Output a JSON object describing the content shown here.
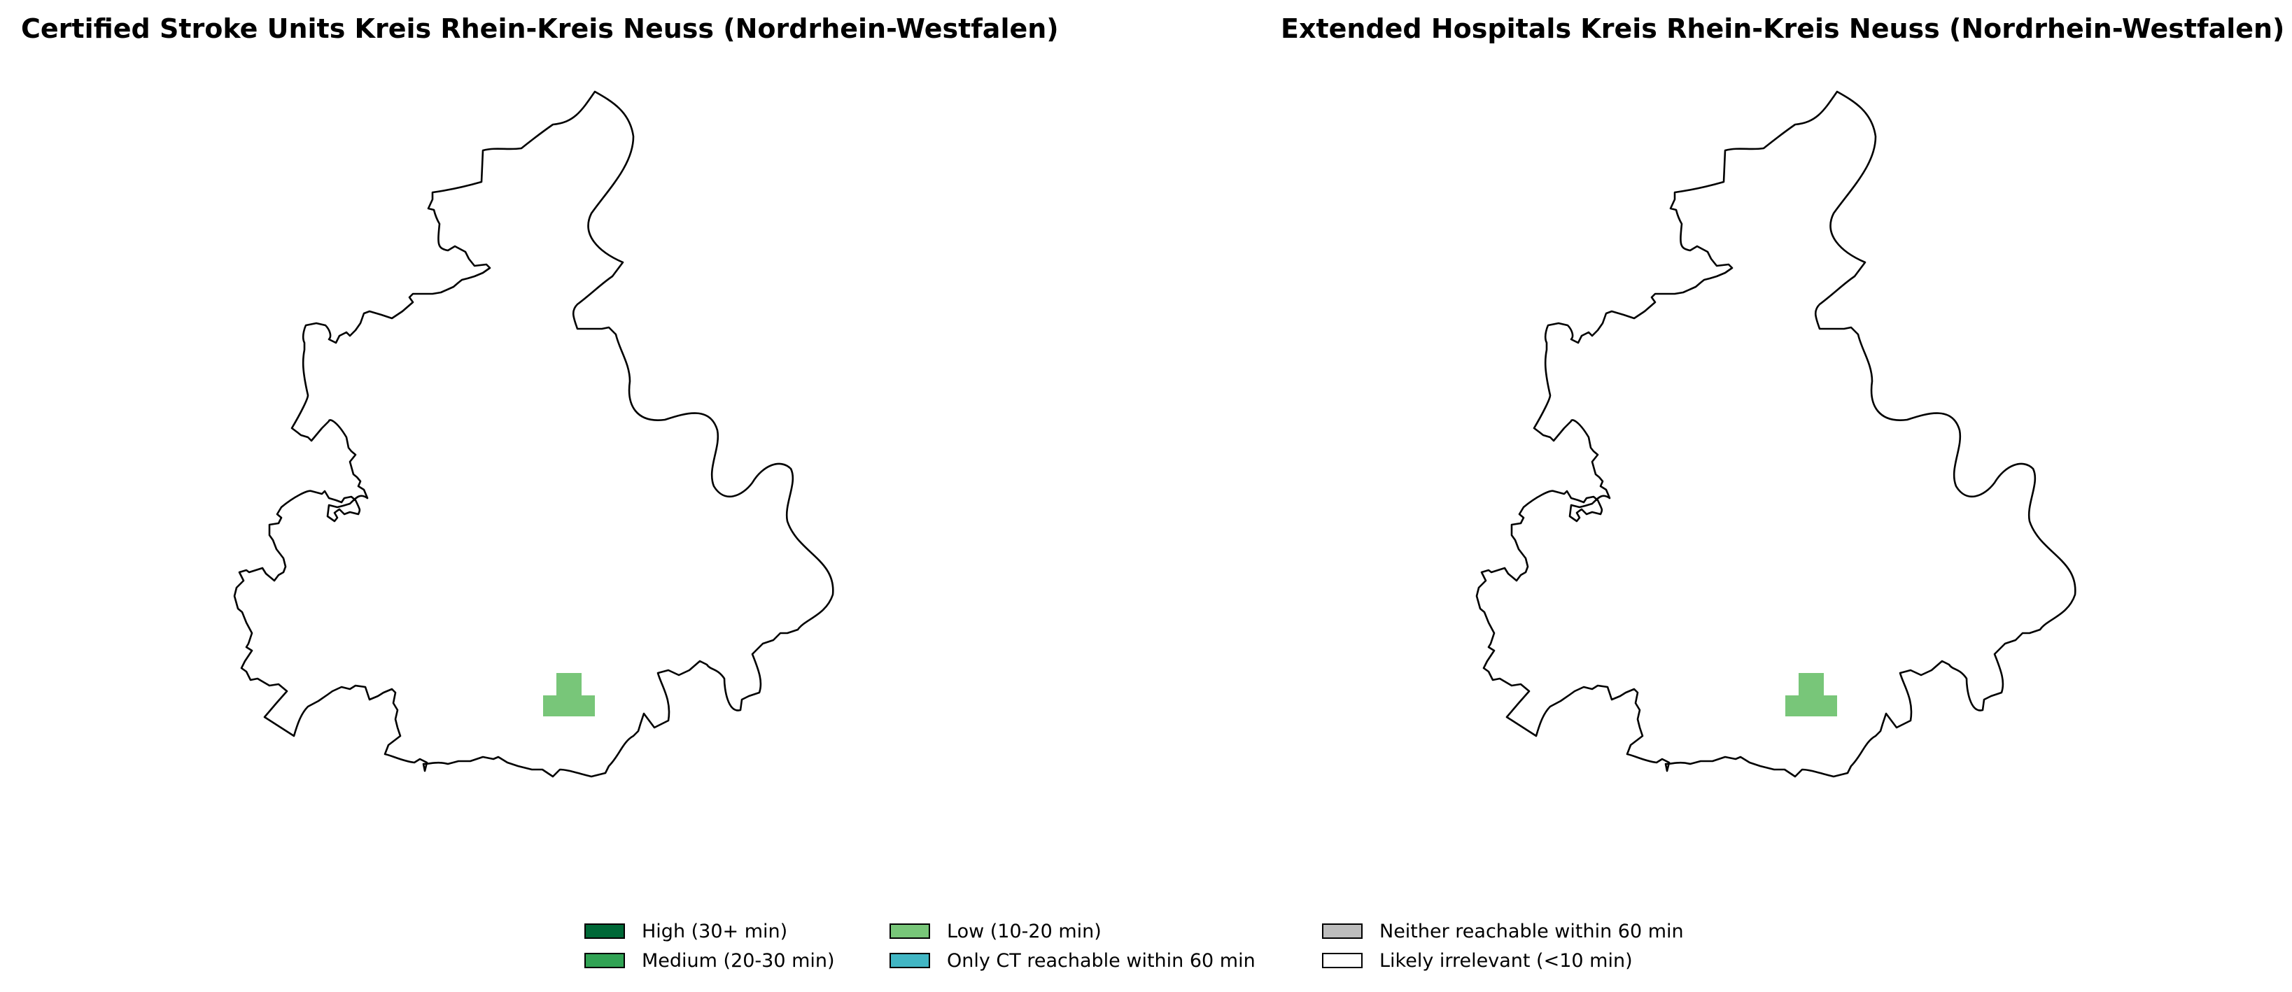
{
  "panels": [
    {
      "title": "Certified Stroke Units Kreis Rhein-Kreis Neuss (Nordrhein-Westfalen)",
      "highlighted_category": "Low (10-20 min)"
    },
    {
      "title": "Extended Hospitals Kreis Rhein-Kreis Neuss (Nordrhein-Westfalen)",
      "highlighted_category": "Low (10-20 min)"
    }
  ],
  "legend": {
    "items": [
      {
        "label": "High (30+ min)",
        "color": "#006837"
      },
      {
        "label": "Medium (20-30 min)",
        "color": "#31a354"
      },
      {
        "label": "Low (10-20 min)",
        "color": "#78c679"
      },
      {
        "label": "Only CT reachable within 60 min",
        "color": "#41b6c4"
      },
      {
        "label": "Neither reachable within 60 min",
        "color": "#bdbdbd"
      },
      {
        "label": "Likely irrelevant (<10 min)",
        "color": "#ffffff"
      }
    ]
  },
  "colors": {
    "outline": "#000000",
    "background": "#ffffff"
  }
}
